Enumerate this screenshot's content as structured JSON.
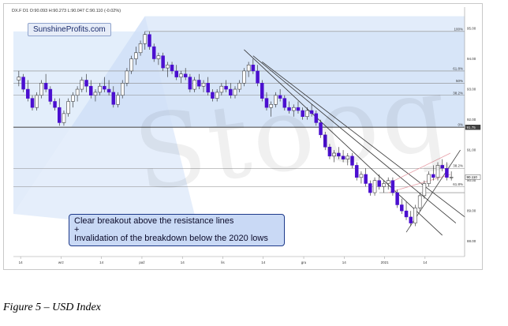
{
  "brand": "SunshineProfits.com",
  "ohlc_line": "DX.F  D1  O:90.093  H:90.273  L:90.047  C:90.110  (-0.02%)",
  "watermark": "Stooq",
  "annotation": {
    "line1": "Clear breakout above the resistance lines",
    "line2": "+",
    "line3": "Invalidation of the breakdown below the 2020 lows"
  },
  "caption": "Figure 5 – USD Index",
  "colors": {
    "candle_up": "#ffffff",
    "candle_down": "#4b0fd0",
    "fan_fill": "#cfe0f7",
    "fib_band": "#e3eefb",
    "resistance": "#333333",
    "pink_line": "#e8a0a8"
  },
  "chart_data": {
    "type": "candlestick",
    "title": "",
    "xlabel": "",
    "ylabel": "",
    "ylim": [
      87.5,
      95.7
    ],
    "x_ticks": [
      "14",
      "wrz",
      "14",
      "paź",
      "14",
      "lis",
      "14",
      "gru",
      "14",
      "2021",
      "14"
    ],
    "y_ticks": [
      88.0,
      89.0,
      90.0,
      91.0,
      92.0,
      93.0,
      94.0,
      95.0
    ],
    "fib_levels": [
      {
        "label": "100%",
        "value": 94.9
      },
      {
        "label": "61.8%",
        "value": 93.6
      },
      {
        "label": "50%",
        "value": 93.2
      },
      {
        "label": "38.2%",
        "value": 92.8
      },
      {
        "label": "0%",
        "value": 91.75
      },
      {
        "label": "38.2%",
        "value": 90.4
      },
      {
        "label": "61.8%",
        "value": 89.8
      }
    ],
    "price_tags": [
      {
        "label": "91.75",
        "value": 91.75
      },
      {
        "label": "90.110",
        "value": 90.11
      }
    ],
    "candles": [
      [
        93.3,
        93.6,
        93.1,
        93.4
      ],
      [
        93.4,
        93.5,
        92.9,
        93.0
      ],
      [
        93.0,
        93.3,
        92.6,
        92.7
      ],
      [
        92.7,
        92.8,
        92.3,
        92.4
      ],
      [
        92.4,
        92.9,
        92.3,
        92.8
      ],
      [
        92.8,
        93.3,
        92.7,
        93.2
      ],
      [
        93.2,
        93.5,
        92.9,
        93.0
      ],
      [
        93.0,
        93.1,
        92.5,
        92.6
      ],
      [
        92.6,
        92.7,
        92.3,
        92.4
      ],
      [
        92.4,
        92.7,
        91.8,
        91.9
      ],
      [
        91.9,
        92.3,
        91.8,
        92.2
      ],
      [
        92.2,
        92.7,
        92.1,
        92.6
      ],
      [
        92.6,
        92.9,
        92.4,
        92.8
      ],
      [
        92.8,
        93.1,
        92.6,
        93.0
      ],
      [
        93.0,
        93.4,
        92.9,
        93.3
      ],
      [
        93.3,
        93.5,
        92.9,
        93.1
      ],
      [
        93.1,
        93.3,
        92.7,
        92.8
      ],
      [
        92.8,
        93.0,
        92.6,
        92.9
      ],
      [
        92.9,
        93.2,
        92.8,
        93.1
      ],
      [
        93.1,
        93.4,
        92.9,
        93.0
      ],
      [
        93.0,
        93.3,
        92.8,
        92.9
      ],
      [
        92.9,
        93.1,
        92.4,
        92.5
      ],
      [
        92.5,
        92.9,
        92.4,
        92.8
      ],
      [
        92.8,
        93.3,
        92.7,
        93.2
      ],
      [
        93.2,
        93.7,
        93.1,
        93.6
      ],
      [
        93.6,
        94.1,
        93.5,
        94.0
      ],
      [
        94.0,
        94.4,
        93.8,
        94.2
      ],
      [
        94.2,
        94.6,
        94.1,
        94.5
      ],
      [
        94.5,
        94.9,
        94.3,
        94.8
      ],
      [
        94.8,
        94.9,
        94.3,
        94.4
      ],
      [
        94.4,
        94.5,
        93.9,
        94.0
      ],
      [
        94.0,
        94.2,
        93.8,
        94.1
      ],
      [
        94.1,
        94.2,
        93.6,
        93.7
      ],
      [
        93.7,
        93.9,
        93.4,
        93.8
      ],
      [
        93.8,
        93.9,
        93.5,
        93.6
      ],
      [
        93.6,
        93.8,
        93.3,
        93.4
      ],
      [
        93.4,
        93.6,
        93.2,
        93.5
      ],
      [
        93.5,
        93.7,
        93.3,
        93.4
      ],
      [
        93.4,
        93.5,
        92.9,
        93.0
      ],
      [
        93.0,
        93.4,
        92.9,
        93.3
      ],
      [
        93.3,
        93.5,
        93.0,
        93.1
      ],
      [
        93.1,
        93.3,
        92.9,
        93.2
      ],
      [
        93.2,
        93.4,
        92.8,
        92.9
      ],
      [
        92.9,
        93.0,
        92.6,
        92.7
      ],
      [
        92.7,
        93.0,
        92.6,
        92.9
      ],
      [
        92.9,
        93.2,
        92.8,
        93.1
      ],
      [
        93.1,
        93.3,
        92.9,
        93.0
      ],
      [
        93.0,
        93.2,
        92.7,
        92.8
      ],
      [
        92.8,
        93.1,
        92.7,
        93.0
      ],
      [
        93.0,
        93.3,
        92.9,
        93.2
      ],
      [
        93.2,
        93.7,
        93.1,
        93.6
      ],
      [
        93.6,
        93.9,
        93.4,
        93.8
      ],
      [
        93.8,
        94.0,
        93.5,
        93.6
      ],
      [
        93.6,
        93.8,
        93.1,
        93.2
      ],
      [
        93.2,
        93.3,
        92.6,
        92.7
      ],
      [
        92.7,
        92.9,
        92.3,
        92.4
      ],
      [
        92.4,
        92.6,
        92.1,
        92.5
      ],
      [
        92.5,
        92.9,
        92.4,
        92.8
      ],
      [
        92.8,
        93.0,
        92.6,
        92.7
      ],
      [
        92.7,
        92.8,
        92.3,
        92.4
      ],
      [
        92.4,
        92.6,
        92.2,
        92.3
      ],
      [
        92.3,
        92.5,
        92.1,
        92.4
      ],
      [
        92.4,
        92.6,
        92.2,
        92.3
      ],
      [
        92.3,
        92.4,
        92.0,
        92.1
      ],
      [
        92.1,
        92.4,
        92.0,
        92.3
      ],
      [
        92.3,
        92.5,
        92.1,
        92.2
      ],
      [
        92.2,
        92.3,
        91.8,
        91.9
      ],
      [
        91.9,
        92.0,
        91.4,
        91.5
      ],
      [
        91.5,
        91.6,
        91.0,
        91.1
      ],
      [
        91.1,
        91.2,
        90.7,
        90.8
      ],
      [
        90.8,
        91.0,
        90.6,
        90.9
      ],
      [
        90.9,
        91.1,
        90.7,
        90.8
      ],
      [
        90.8,
        91.0,
        90.6,
        90.7
      ],
      [
        90.7,
        90.9,
        90.5,
        90.8
      ],
      [
        90.8,
        90.9,
        90.4,
        90.5
      ],
      [
        90.5,
        90.6,
        90.0,
        90.1
      ],
      [
        90.1,
        90.3,
        89.9,
        90.2
      ],
      [
        90.2,
        90.4,
        89.8,
        89.9
      ],
      [
        89.9,
        90.0,
        89.5,
        89.6
      ],
      [
        89.6,
        90.1,
        89.5,
        90.0
      ],
      [
        90.0,
        90.2,
        89.7,
        89.8
      ],
      [
        89.8,
        90.0,
        89.6,
        89.9
      ],
      [
        89.9,
        90.1,
        89.7,
        90.0
      ],
      [
        90.0,
        90.1,
        89.5,
        89.6
      ],
      [
        89.6,
        89.7,
        89.1,
        89.2
      ],
      [
        89.2,
        89.4,
        88.9,
        89.0
      ],
      [
        89.0,
        89.3,
        88.7,
        88.8
      ],
      [
        88.8,
        89.0,
        88.5,
        88.6
      ],
      [
        88.6,
        89.2,
        88.5,
        89.1
      ],
      [
        89.1,
        89.6,
        89.0,
        89.5
      ],
      [
        89.5,
        90.0,
        89.4,
        89.9
      ],
      [
        89.9,
        90.3,
        89.8,
        90.2
      ],
      [
        90.2,
        90.5,
        90.0,
        90.1
      ],
      [
        90.1,
        90.6,
        90.0,
        90.5
      ],
      [
        90.5,
        90.7,
        90.3,
        90.4
      ],
      [
        90.4,
        90.6,
        90.0,
        90.1
      ],
      [
        90.1,
        90.3,
        90.0,
        90.11
      ]
    ]
  }
}
